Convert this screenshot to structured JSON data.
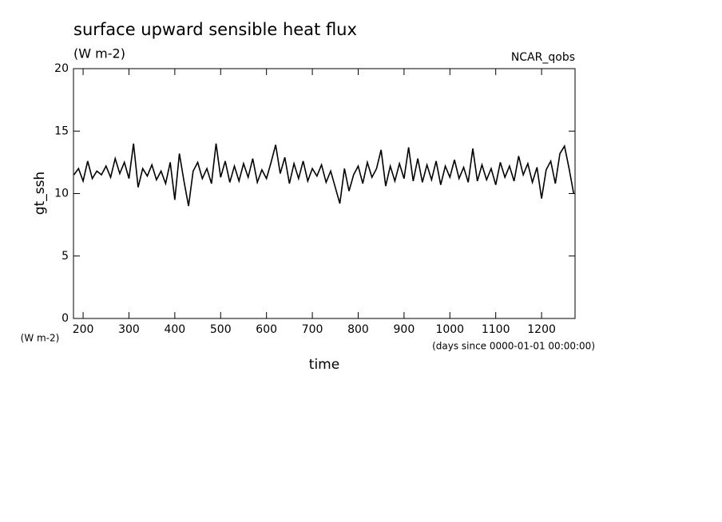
{
  "chart_data": {
    "type": "line",
    "title": "surface upward sensible heat flux",
    "subtitle": "(W m-2)",
    "source": "NCAR_qobs",
    "y_label": "gt_ssh",
    "y_units": "(W m-2)",
    "x_label": "time",
    "x_units": "(days since 0000-01-01 00:00:00)",
    "x": [
      180,
      190,
      200,
      210,
      220,
      230,
      240,
      250,
      260,
      270,
      280,
      290,
      300,
      310,
      320,
      330,
      340,
      350,
      360,
      370,
      380,
      390,
      400,
      410,
      420,
      430,
      440,
      450,
      460,
      470,
      480,
      490,
      500,
      510,
      520,
      530,
      540,
      550,
      560,
      570,
      580,
      590,
      600,
      610,
      620,
      630,
      640,
      650,
      660,
      670,
      680,
      690,
      700,
      710,
      720,
      730,
      740,
      750,
      760,
      770,
      780,
      790,
      800,
      810,
      820,
      830,
      840,
      850,
      860,
      870,
      880,
      890,
      900,
      910,
      920,
      930,
      940,
      950,
      960,
      970,
      980,
      990,
      1000,
      1010,
      1020,
      1030,
      1040,
      1050,
      1060,
      1070,
      1080,
      1090,
      1100,
      1110,
      1120,
      1130,
      1140,
      1150,
      1160,
      1170,
      1180,
      1190,
      1200,
      1210,
      1220,
      1230,
      1240,
      1250,
      1260,
      1270
    ],
    "series": [
      {
        "color": "#000000",
        "values": [
          11.5,
          12.0,
          11.0,
          12.6,
          11.2,
          11.8,
          11.5,
          12.2,
          11.3,
          12.8,
          11.6,
          12.5,
          11.2,
          14.0,
          10.5,
          12.0,
          11.4,
          12.3,
          11.1,
          11.8,
          10.8,
          12.5,
          9.5,
          13.2,
          11.0,
          9.0,
          11.8,
          12.5,
          11.2,
          12.0,
          10.8,
          14.0,
          11.3,
          12.6,
          10.9,
          12.2,
          11.0,
          12.4,
          11.3,
          12.8,
          10.9,
          11.9,
          11.2,
          12.5,
          13.9,
          11.6,
          12.9,
          10.8,
          12.4,
          11.2,
          12.6,
          11.0,
          12.0,
          11.4,
          12.3,
          10.9,
          11.8,
          10.5,
          9.2,
          12.0,
          10.2,
          11.5,
          12.2,
          10.8,
          12.5,
          11.3,
          12.0,
          13.5,
          10.6,
          12.2,
          11.0,
          12.4,
          11.2,
          13.7,
          11.0,
          12.8,
          10.9,
          12.3,
          11.1,
          12.6,
          10.7,
          12.2,
          11.3,
          12.7,
          11.2,
          12.1,
          10.9,
          13.6,
          11.0,
          12.3,
          11.1,
          12.0,
          10.7,
          12.5,
          11.3,
          12.2,
          11.0,
          13.0,
          11.5,
          12.4,
          10.9,
          12.1,
          9.6,
          11.9,
          12.6,
          10.8,
          13.2,
          13.8,
          12.0,
          10.0
        ]
      }
    ],
    "xlim": [
      179,
      1273
    ],
    "xticks": [
      200,
      300,
      400,
      500,
      600,
      700,
      800,
      900,
      1000,
      1100,
      1200
    ],
    "ylim": [
      0,
      20
    ],
    "yticks": [
      0,
      5,
      10,
      15,
      20
    ]
  }
}
